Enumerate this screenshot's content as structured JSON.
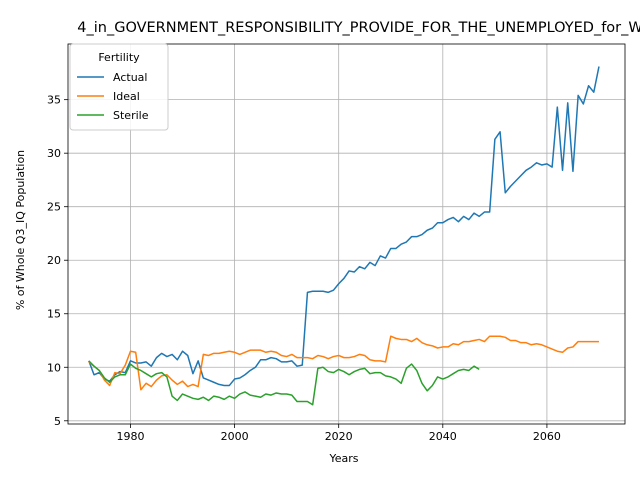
{
  "chart_data": {
    "type": "line",
    "title": "4_in_GOVERNMENT_RESPONSIBILITY_PROVIDE_FOR_THE_UNEMPLOYED_for_W",
    "xlabel": "Years",
    "ylabel": "% of Whole Q3_IQ Population",
    "xlim": [
      1968,
      2075
    ],
    "ylim": [
      4.7,
      40.2
    ],
    "xticks": [
      1980,
      2000,
      2020,
      2040,
      2060
    ],
    "yticks": [
      5,
      10,
      15,
      20,
      25,
      30,
      35
    ],
    "grid": true,
    "legend": {
      "title": "Fertility",
      "placement": "top-left"
    },
    "series": [
      {
        "name": "Actual",
        "color": "#1f77b4",
        "points": [
          [
            1972,
            10.6
          ],
          [
            1973,
            9.3
          ],
          [
            1974,
            9.5
          ],
          [
            1975,
            8.9
          ],
          [
            1976,
            8.7
          ],
          [
            1977,
            9.3
          ],
          [
            1978,
            9.6
          ],
          [
            1979,
            9.5
          ],
          [
            1980,
            10.6
          ],
          [
            1981,
            10.4
          ],
          [
            1982,
            10.4
          ],
          [
            1983,
            10.5
          ],
          [
            1984,
            10.1
          ],
          [
            1985,
            10.9
          ],
          [
            1986,
            11.3
          ],
          [
            1987,
            11.0
          ],
          [
            1988,
            11.2
          ],
          [
            1989,
            10.7
          ],
          [
            1990,
            11.5
          ],
          [
            1991,
            11.1
          ],
          [
            1992,
            9.4
          ],
          [
            1993,
            10.6
          ],
          [
            1994,
            9.0
          ],
          [
            1995,
            8.8
          ],
          [
            1996,
            8.6
          ],
          [
            1997,
            8.4
          ],
          [
            1998,
            8.3
          ],
          [
            1999,
            8.3
          ],
          [
            2000,
            8.9
          ],
          [
            2001,
            9.0
          ],
          [
            2002,
            9.3
          ],
          [
            2003,
            9.7
          ],
          [
            2004,
            10.0
          ],
          [
            2005,
            10.7
          ],
          [
            2006,
            10.7
          ],
          [
            2007,
            10.9
          ],
          [
            2008,
            10.8
          ],
          [
            2009,
            10.5
          ],
          [
            2010,
            10.5
          ],
          [
            2011,
            10.6
          ],
          [
            2012,
            10.1
          ],
          [
            2013,
            10.2
          ],
          [
            2014,
            17.0
          ],
          [
            2015,
            17.1
          ],
          [
            2016,
            17.1
          ],
          [
            2017,
            17.1
          ],
          [
            2018,
            17.0
          ],
          [
            2019,
            17.2
          ],
          [
            2020,
            17.8
          ],
          [
            2021,
            18.3
          ],
          [
            2022,
            19.0
          ],
          [
            2023,
            18.9
          ],
          [
            2024,
            19.4
          ],
          [
            2025,
            19.2
          ],
          [
            2026,
            19.8
          ],
          [
            2027,
            19.5
          ],
          [
            2028,
            20.4
          ],
          [
            2029,
            20.2
          ],
          [
            2030,
            21.1
          ],
          [
            2031,
            21.1
          ],
          [
            2032,
            21.5
          ],
          [
            2033,
            21.7
          ],
          [
            2034,
            22.2
          ],
          [
            2035,
            22.2
          ],
          [
            2036,
            22.4
          ],
          [
            2037,
            22.8
          ],
          [
            2038,
            23.0
          ],
          [
            2039,
            23.5
          ],
          [
            2040,
            23.5
          ],
          [
            2041,
            23.8
          ],
          [
            2042,
            24.0
          ],
          [
            2043,
            23.6
          ],
          [
            2044,
            24.1
          ],
          [
            2045,
            23.8
          ],
          [
            2046,
            24.4
          ],
          [
            2047,
            24.1
          ],
          [
            2048,
            24.5
          ],
          [
            2049,
            24.5
          ],
          [
            2050,
            31.3
          ],
          [
            2051,
            32.0
          ],
          [
            2052,
            26.3
          ],
          [
            2053,
            26.9
          ],
          [
            2054,
            27.4
          ],
          [
            2055,
            27.9
          ],
          [
            2056,
            28.4
          ],
          [
            2057,
            28.7
          ],
          [
            2058,
            29.1
          ],
          [
            2059,
            28.9
          ],
          [
            2060,
            29.0
          ],
          [
            2061,
            28.7
          ],
          [
            2062,
            34.3
          ],
          [
            2063,
            28.4
          ],
          [
            2064,
            34.7
          ],
          [
            2065,
            28.3
          ],
          [
            2066,
            35.4
          ],
          [
            2067,
            34.6
          ],
          [
            2068,
            36.3
          ],
          [
            2069,
            35.7
          ],
          [
            2070,
            38.1
          ]
        ]
      },
      {
        "name": "Ideal",
        "color": "#ff7f0e",
        "points": [
          [
            1972,
            10.5
          ],
          [
            1973,
            10.1
          ],
          [
            1974,
            9.7
          ],
          [
            1975,
            8.8
          ],
          [
            1976,
            8.3
          ],
          [
            1977,
            9.5
          ],
          [
            1978,
            9.4
          ],
          [
            1979,
            10.2
          ],
          [
            1980,
            11.5
          ],
          [
            1981,
            11.4
          ],
          [
            1982,
            7.9
          ],
          [
            1983,
            8.5
          ],
          [
            1984,
            8.2
          ],
          [
            1985,
            8.8
          ],
          [
            1986,
            9.2
          ],
          [
            1987,
            9.3
          ],
          [
            1988,
            8.8
          ],
          [
            1989,
            8.4
          ],
          [
            1990,
            8.7
          ],
          [
            1991,
            8.2
          ],
          [
            1992,
            8.4
          ],
          [
            1993,
            8.2
          ],
          [
            1994,
            11.2
          ],
          [
            1995,
            11.1
          ],
          [
            1996,
            11.3
          ],
          [
            1997,
            11.3
          ],
          [
            1998,
            11.4
          ],
          [
            1999,
            11.5
          ],
          [
            2000,
            11.4
          ],
          [
            2001,
            11.2
          ],
          [
            2002,
            11.4
          ],
          [
            2003,
            11.6
          ],
          [
            2004,
            11.6
          ],
          [
            2005,
            11.6
          ],
          [
            2006,
            11.4
          ],
          [
            2007,
            11.5
          ],
          [
            2008,
            11.4
          ],
          [
            2009,
            11.1
          ],
          [
            2010,
            11.0
          ],
          [
            2011,
            11.2
          ],
          [
            2012,
            10.9
          ],
          [
            2013,
            10.9
          ],
          [
            2014,
            10.9
          ],
          [
            2015,
            10.8
          ],
          [
            2016,
            11.1
          ],
          [
            2017,
            11.0
          ],
          [
            2018,
            10.8
          ],
          [
            2019,
            11.0
          ],
          [
            2020,
            11.1
          ],
          [
            2021,
            10.9
          ],
          [
            2022,
            10.9
          ],
          [
            2023,
            11.0
          ],
          [
            2024,
            11.2
          ],
          [
            2025,
            11.1
          ],
          [
            2026,
            10.7
          ],
          [
            2027,
            10.6
          ],
          [
            2028,
            10.6
          ],
          [
            2029,
            10.5
          ],
          [
            2030,
            12.9
          ],
          [
            2031,
            12.7
          ],
          [
            2032,
            12.6
          ],
          [
            2033,
            12.6
          ],
          [
            2034,
            12.4
          ],
          [
            2035,
            12.7
          ],
          [
            2036,
            12.3
          ],
          [
            2037,
            12.1
          ],
          [
            2038,
            12.0
          ],
          [
            2039,
            11.8
          ],
          [
            2040,
            11.9
          ],
          [
            2041,
            11.9
          ],
          [
            2042,
            12.2
          ],
          [
            2043,
            12.1
          ],
          [
            2044,
            12.4
          ],
          [
            2045,
            12.4
          ],
          [
            2046,
            12.5
          ],
          [
            2047,
            12.6
          ],
          [
            2048,
            12.4
          ],
          [
            2049,
            12.9
          ],
          [
            2050,
            12.9
          ],
          [
            2051,
            12.9
          ],
          [
            2052,
            12.8
          ],
          [
            2053,
            12.5
          ],
          [
            2054,
            12.5
          ],
          [
            2055,
            12.3
          ],
          [
            2056,
            12.3
          ],
          [
            2057,
            12.1
          ],
          [
            2058,
            12.2
          ],
          [
            2059,
            12.1
          ],
          [
            2060,
            11.9
          ],
          [
            2061,
            11.7
          ],
          [
            2062,
            11.5
          ],
          [
            2063,
            11.4
          ],
          [
            2064,
            11.8
          ],
          [
            2065,
            11.9
          ],
          [
            2066,
            12.4
          ],
          [
            2067,
            12.4
          ],
          [
            2068,
            12.4
          ],
          [
            2069,
            12.4
          ],
          [
            2070,
            12.4
          ]
        ]
      },
      {
        "name": "Sterile",
        "color": "#2ca02c",
        "points": [
          [
            1972,
            10.6
          ],
          [
            1973,
            10.1
          ],
          [
            1974,
            9.7
          ],
          [
            1975,
            9.0
          ],
          [
            1976,
            8.6
          ],
          [
            1977,
            9.1
          ],
          [
            1978,
            9.3
          ],
          [
            1979,
            9.3
          ],
          [
            1980,
            10.3
          ],
          [
            1981,
            9.9
          ],
          [
            1982,
            9.7
          ],
          [
            1983,
            9.4
          ],
          [
            1984,
            9.1
          ],
          [
            1985,
            9.4
          ],
          [
            1986,
            9.5
          ],
          [
            1987,
            9.1
          ],
          [
            1988,
            7.3
          ],
          [
            1989,
            6.9
          ],
          [
            1990,
            7.5
          ],
          [
            1991,
            7.3
          ],
          [
            1992,
            7.1
          ],
          [
            1993,
            7.0
          ],
          [
            1994,
            7.2
          ],
          [
            1995,
            6.9
          ],
          [
            1996,
            7.3
          ],
          [
            1997,
            7.2
          ],
          [
            1998,
            7.0
          ],
          [
            1999,
            7.3
          ],
          [
            2000,
            7.1
          ],
          [
            2001,
            7.5
          ],
          [
            2002,
            7.7
          ],
          [
            2003,
            7.4
          ],
          [
            2004,
            7.3
          ],
          [
            2005,
            7.2
          ],
          [
            2006,
            7.5
          ],
          [
            2007,
            7.4
          ],
          [
            2008,
            7.6
          ],
          [
            2009,
            7.5
          ],
          [
            2010,
            7.5
          ],
          [
            2011,
            7.4
          ],
          [
            2012,
            6.8
          ],
          [
            2013,
            6.8
          ],
          [
            2014,
            6.8
          ],
          [
            2015,
            6.5
          ],
          [
            2016,
            9.9
          ],
          [
            2017,
            10.0
          ],
          [
            2018,
            9.6
          ],
          [
            2019,
            9.5
          ],
          [
            2020,
            9.8
          ],
          [
            2021,
            9.6
          ],
          [
            2022,
            9.3
          ],
          [
            2023,
            9.6
          ],
          [
            2024,
            9.8
          ],
          [
            2025,
            9.9
          ],
          [
            2026,
            9.4
          ],
          [
            2027,
            9.5
          ],
          [
            2028,
            9.5
          ],
          [
            2029,
            9.2
          ],
          [
            2030,
            9.1
          ],
          [
            2031,
            8.9
          ],
          [
            2032,
            8.5
          ],
          [
            2033,
            9.9
          ],
          [
            2034,
            10.3
          ],
          [
            2035,
            9.7
          ],
          [
            2036,
            8.5
          ],
          [
            2037,
            7.8
          ],
          [
            2038,
            8.3
          ],
          [
            2039,
            9.1
          ],
          [
            2040,
            8.9
          ],
          [
            2041,
            9.1
          ],
          [
            2042,
            9.4
          ],
          [
            2043,
            9.7
          ],
          [
            2044,
            9.8
          ],
          [
            2045,
            9.7
          ],
          [
            2046,
            10.1
          ],
          [
            2047,
            9.8
          ]
        ]
      }
    ]
  }
}
